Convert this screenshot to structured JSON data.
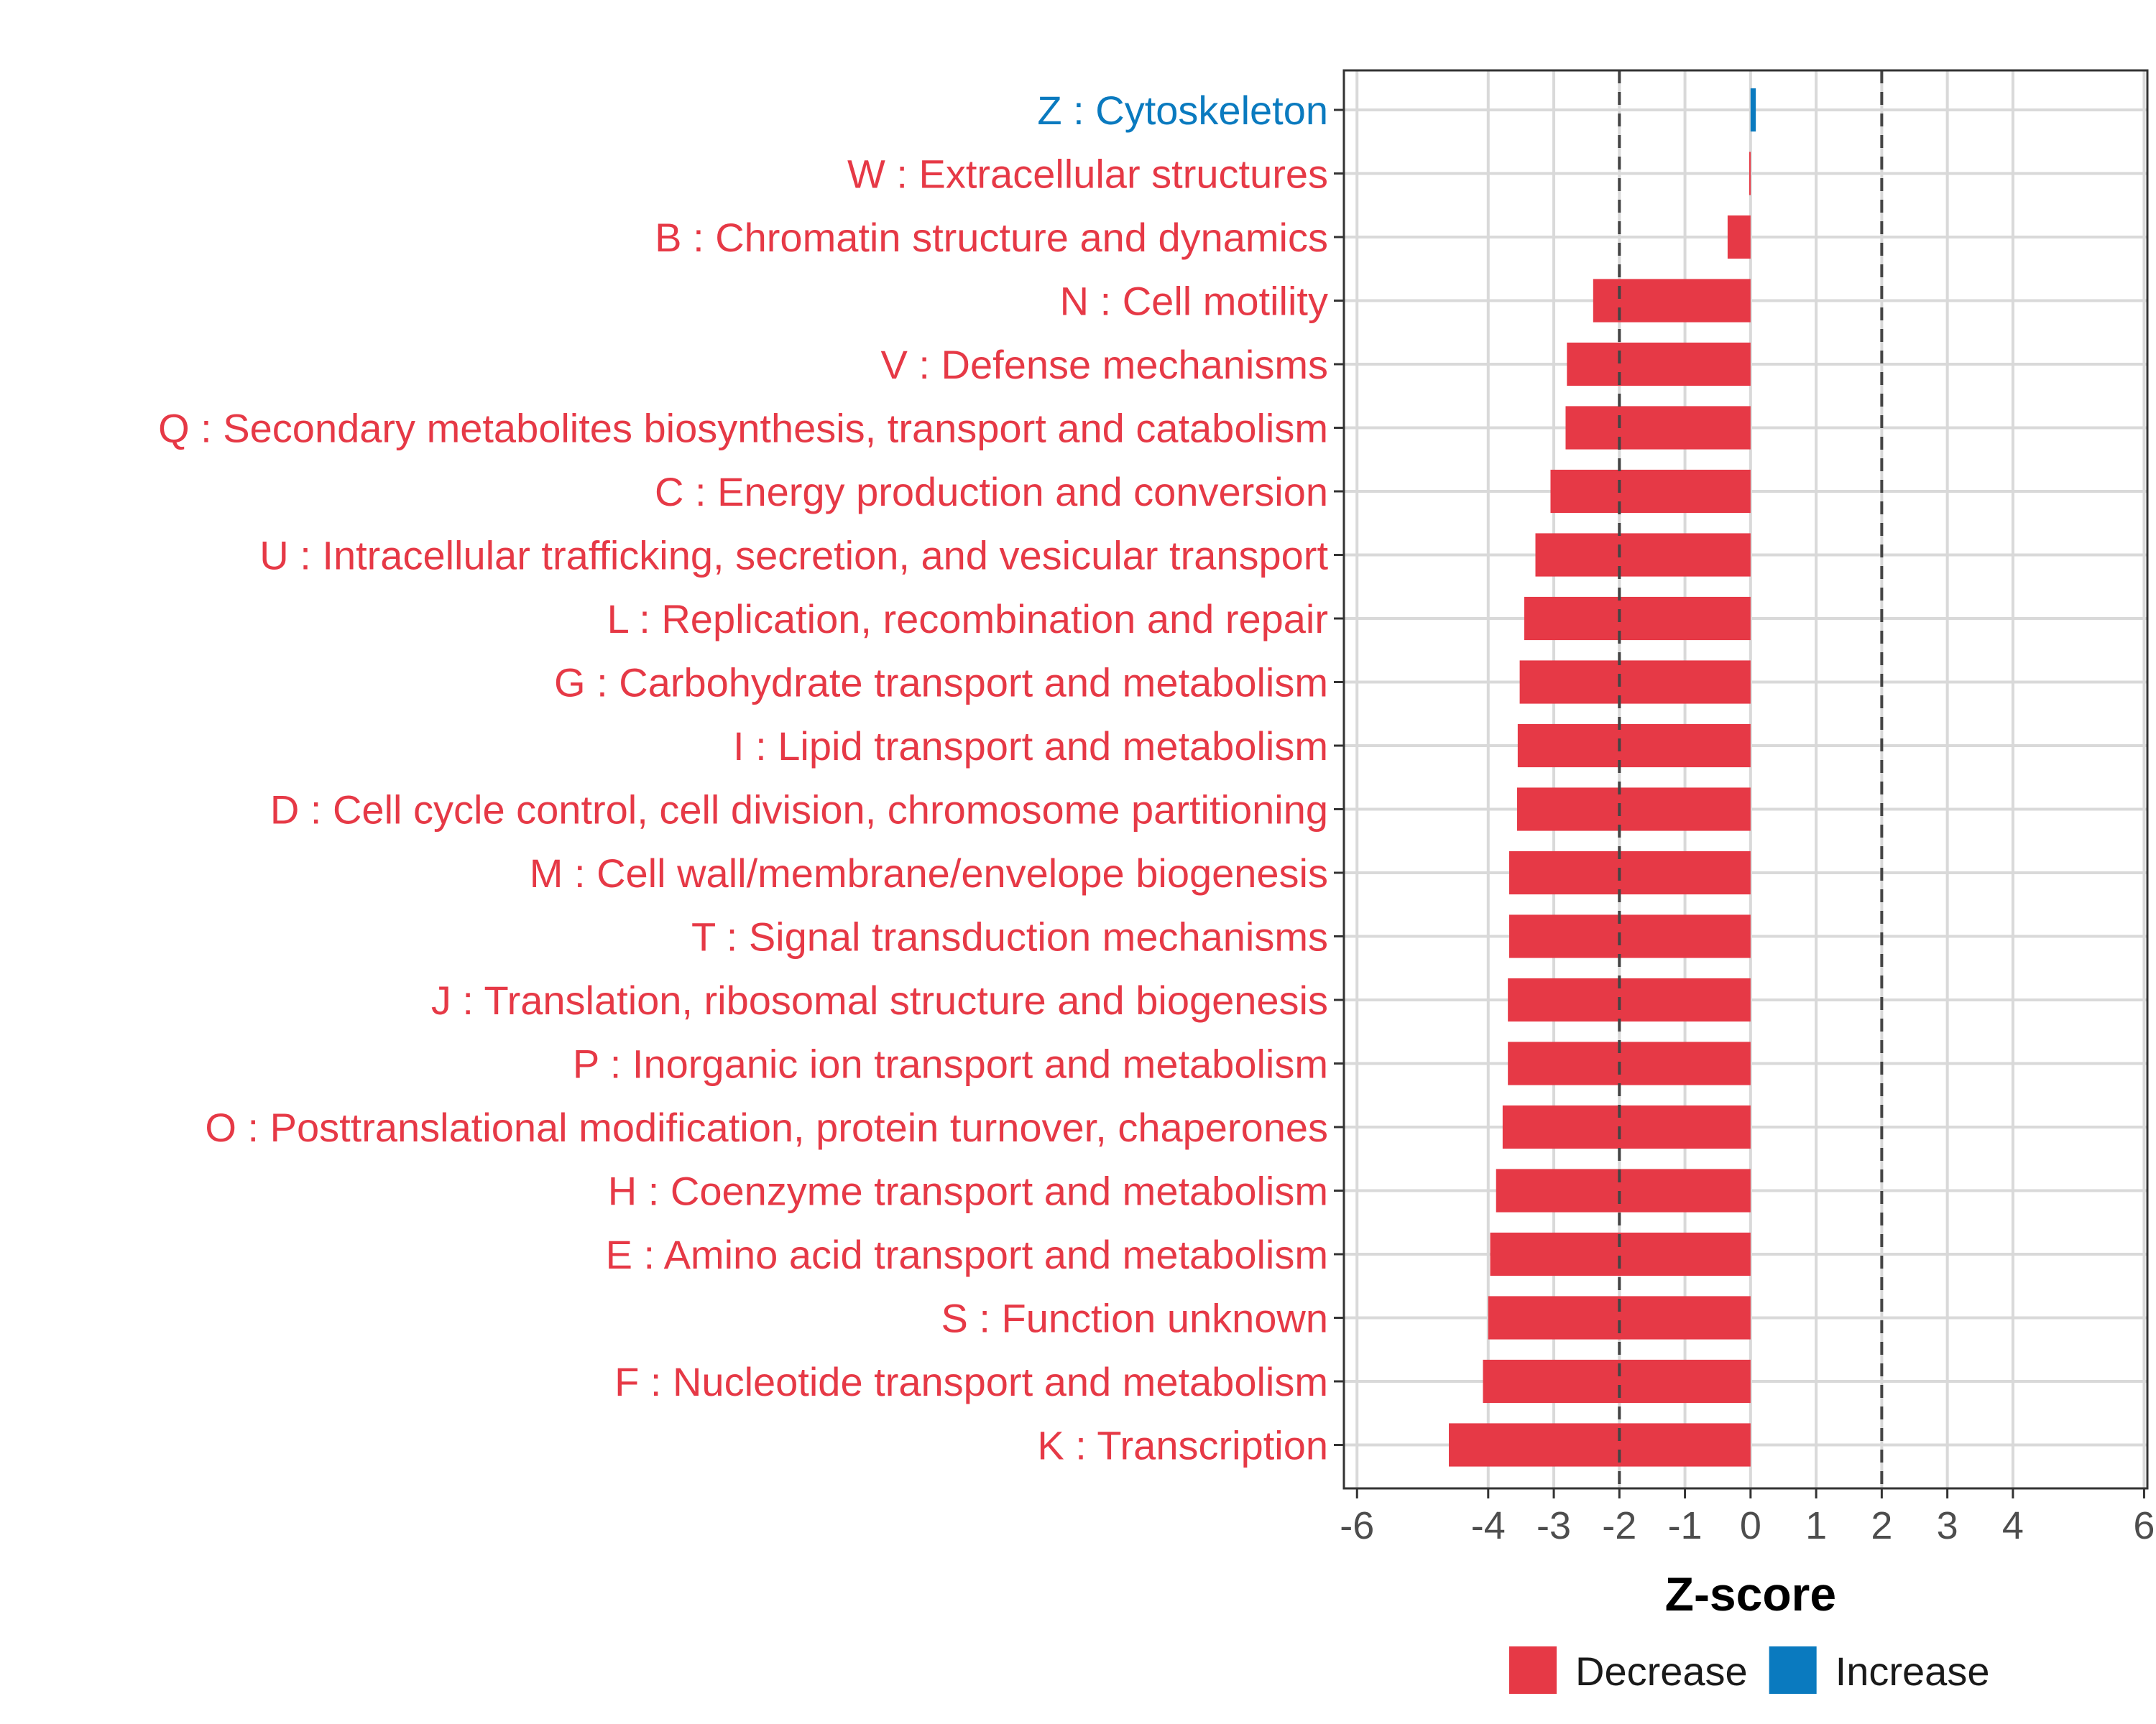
{
  "chart_data": {
    "type": "bar",
    "orientation": "horizontal",
    "xlabel": "Z-score",
    "ylabel": "",
    "xlim": [
      -6.2,
      6.05
    ],
    "xticks": [
      -6,
      -4,
      -3,
      -2,
      -1,
      0,
      1,
      2,
      3,
      4,
      6
    ],
    "xtick_labels": [
      "-6",
      "-4",
      "-3",
      "-2",
      "-1",
      "0",
      "1",
      "2",
      "3",
      "4",
      "6"
    ],
    "reference_lines": [
      -2,
      2
    ],
    "categories": [
      "Z : Cytoskeleton",
      "W : Extracellular structures",
      "B : Chromatin structure and dynamics",
      "N : Cell motility",
      "V : Defense mechanisms",
      "Q : Secondary metabolites biosynthesis, transport and catabolism",
      "C : Energy production and conversion",
      "U : Intracellular trafficking, secretion, and vesicular transport",
      "L : Replication, recombination and repair",
      "G : Carbohydrate transport and metabolism",
      "I : Lipid transport and metabolism",
      "D : Cell cycle control, cell division, chromosome partitioning",
      "M : Cell wall/membrane/envelope biogenesis",
      "T : Signal transduction mechanisms",
      "J : Translation, ribosomal structure and biogenesis",
      "P : Inorganic ion transport and metabolism",
      "O : Posttranslational modification, protein turnover, chaperones",
      "H : Coenzyme transport and metabolism",
      "E : Amino acid transport and metabolism",
      "S : Function unknown",
      "F : Nucleotide transport and metabolism",
      "K : Transcription"
    ],
    "values": [
      0.08,
      -0.02,
      -0.35,
      -2.4,
      -2.8,
      -2.82,
      -3.05,
      -3.28,
      -3.45,
      -3.52,
      -3.55,
      -3.56,
      -3.68,
      -3.68,
      -3.7,
      -3.7,
      -3.78,
      -3.88,
      -3.97,
      -4.0,
      -4.08,
      -4.6
    ],
    "groups": [
      "Increase",
      "Decrease",
      "Decrease",
      "Decrease",
      "Decrease",
      "Decrease",
      "Decrease",
      "Decrease",
      "Decrease",
      "Decrease",
      "Decrease",
      "Decrease",
      "Decrease",
      "Decrease",
      "Decrease",
      "Decrease",
      "Decrease",
      "Decrease",
      "Decrease",
      "Decrease",
      "Decrease",
      "Decrease"
    ],
    "legend": [
      {
        "name": "Decrease",
        "color": "#e63946"
      },
      {
        "name": "Increase",
        "color": "#0a7abf"
      }
    ],
    "legend_position": "bottom"
  },
  "colors": {
    "decrease": "#e63946",
    "increase": "#0a7abf",
    "grid": "#d9d9d9",
    "axis_text": "#4d4d4d"
  }
}
